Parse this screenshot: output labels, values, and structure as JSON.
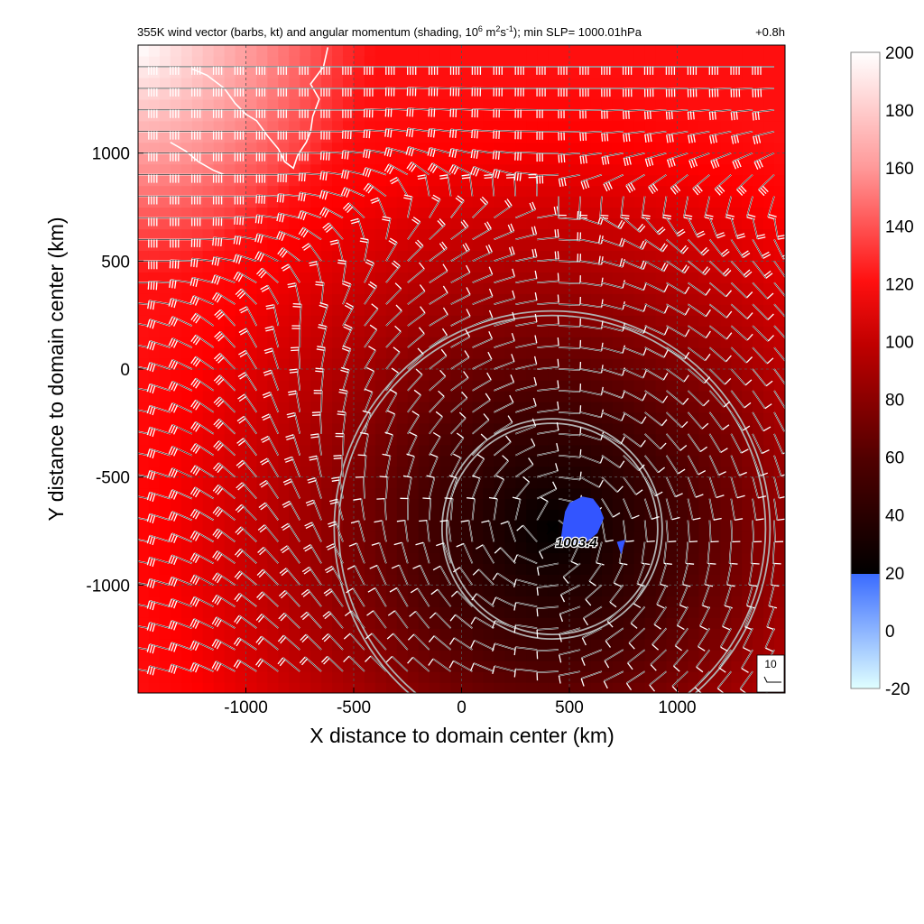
{
  "chart_data": {
    "type": "heatmap",
    "title": {
      "main": "355K wind vector (barbs, kt) and angular momentum (shading, 10",
      "exp1": "6",
      "mid1": " m",
      "exp2": "2",
      "mid2": "s",
      "exp3": "-1",
      "tail": "); min SLP= 1000.01hPa",
      "time": "+0.8h"
    },
    "xlabel": "X distance to domain center (km)",
    "ylabel": "Y distance to domain center (km)",
    "xlim": [
      -1500,
      1500
    ],
    "ylim": [
      -1500,
      1500
    ],
    "x_ticks": [
      -1000,
      -500,
      0,
      500,
      1000
    ],
    "y_ticks": [
      1000,
      500,
      0,
      -500,
      -1000
    ],
    "x_tick_labels": [
      "-1000",
      "-500",
      "0",
      "500",
      "1000"
    ],
    "y_tick_labels": [
      "1000",
      "500",
      "0",
      "-500",
      "-1000"
    ],
    "grid": true,
    "colorbar": {
      "min": -20,
      "max": 200,
      "ticks": [
        200,
        180,
        160,
        140,
        120,
        100,
        80,
        60,
        40,
        20,
        0,
        -20
      ],
      "tick_labels": [
        "200",
        "180",
        "160",
        "140",
        "120",
        "100",
        "80",
        "60",
        "40",
        "20",
        "0",
        "-20"
      ]
    },
    "storm_center": {
      "x": 420,
      "y": -740
    },
    "range_rings_km": [
      500,
      1000
    ],
    "pressure_label": "1003.4",
    "reference_barb": "10",
    "colors": {
      "dark_core": "#000000",
      "red": "#ff0000",
      "white": "#ffffff",
      "negative": "#3355ff",
      "ring": "#b0b0b0"
    }
  }
}
